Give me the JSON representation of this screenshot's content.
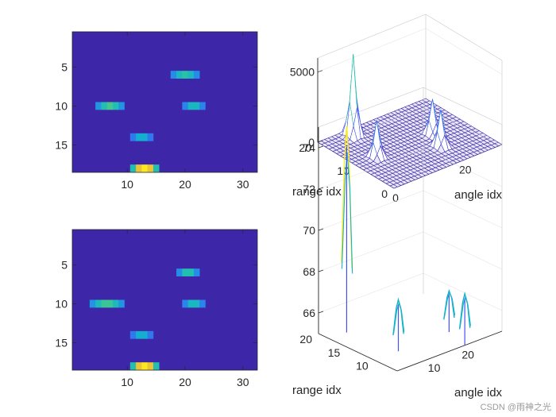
{
  "chart_data": [
    {
      "type": "heatmap",
      "panel": "top-left",
      "x_ticks": [
        "10",
        "20",
        "30"
      ],
      "y_ticks": [
        "5",
        "10",
        "15"
      ],
      "xlim": [
        0.5,
        32.5
      ],
      "ylim": [
        0.5,
        18.5
      ],
      "background_color": "#3E26A8",
      "blobs": [
        {
          "row": 6,
          "col_start": 18,
          "col_end": 22,
          "peak": 0.55
        },
        {
          "row": 10,
          "col_start": 5,
          "col_end": 9,
          "peak": 0.6
        },
        {
          "row": 10,
          "col_start": 20,
          "col_end": 23,
          "peak": 0.5
        },
        {
          "row": 14,
          "col_start": 11,
          "col_end": 14,
          "peak": 0.45
        },
        {
          "row": 18,
          "col_start": 11,
          "col_end": 15,
          "peak": 0.95
        }
      ]
    },
    {
      "type": "surface3d",
      "panel": "top-right",
      "xlabel": "angle idx",
      "ylabel": "range idx",
      "x_ticks": [
        "0",
        "20"
      ],
      "y_ticks": [
        "0",
        "10",
        "20"
      ],
      "z_ticks": [
        "0",
        "5000"
      ],
      "zlim": [
        0,
        6000
      ],
      "peaks": [
        {
          "range": 18,
          "angle": 8,
          "height": 5800
        },
        {
          "range": 10,
          "angle": 6,
          "height": 2600
        },
        {
          "range": 6,
          "angle": 20,
          "height": 2600
        },
        {
          "range": 10,
          "angle": 22,
          "height": 2500
        }
      ]
    },
    {
      "type": "heatmap",
      "panel": "bottom-left",
      "x_ticks": [
        "10",
        "20",
        "30"
      ],
      "y_ticks": [
        "5",
        "10",
        "15"
      ],
      "xlim": [
        0.5,
        32.5
      ],
      "ylim": [
        0.5,
        18.5
      ],
      "background_color": "#3E26A8",
      "blobs": [
        {
          "row": 6,
          "col_start": 19,
          "col_end": 22,
          "peak": 0.55
        },
        {
          "row": 10,
          "col_start": 4,
          "col_end": 9,
          "peak": 0.6
        },
        {
          "row": 10,
          "col_start": 20,
          "col_end": 23,
          "peak": 0.5
        },
        {
          "row": 14,
          "col_start": 11,
          "col_end": 14,
          "peak": 0.45
        },
        {
          "row": 18,
          "col_start": 11,
          "col_end": 15,
          "peak": 0.95
        }
      ]
    },
    {
      "type": "line3d",
      "panel": "bottom-right",
      "xlabel": "angle idx",
      "ylabel": "range idx",
      "x_ticks": [
        "10",
        "20"
      ],
      "y_ticks": [
        "10",
        "15",
        "20"
      ],
      "z_ticks": [
        "66",
        "68",
        "70",
        "72",
        "74"
      ],
      "zlim": [
        65,
        75
      ],
      "peaks": [
        {
          "range": 18,
          "angle": 5,
          "height": 75
        },
        {
          "range": 10,
          "angle": 7,
          "height": 67.5
        },
        {
          "range": 6,
          "angle": 20,
          "height": 67.5
        },
        {
          "range": 10,
          "angle": 22,
          "height": 67
        }
      ]
    }
  ],
  "watermark": "CSDN @雨神之光"
}
